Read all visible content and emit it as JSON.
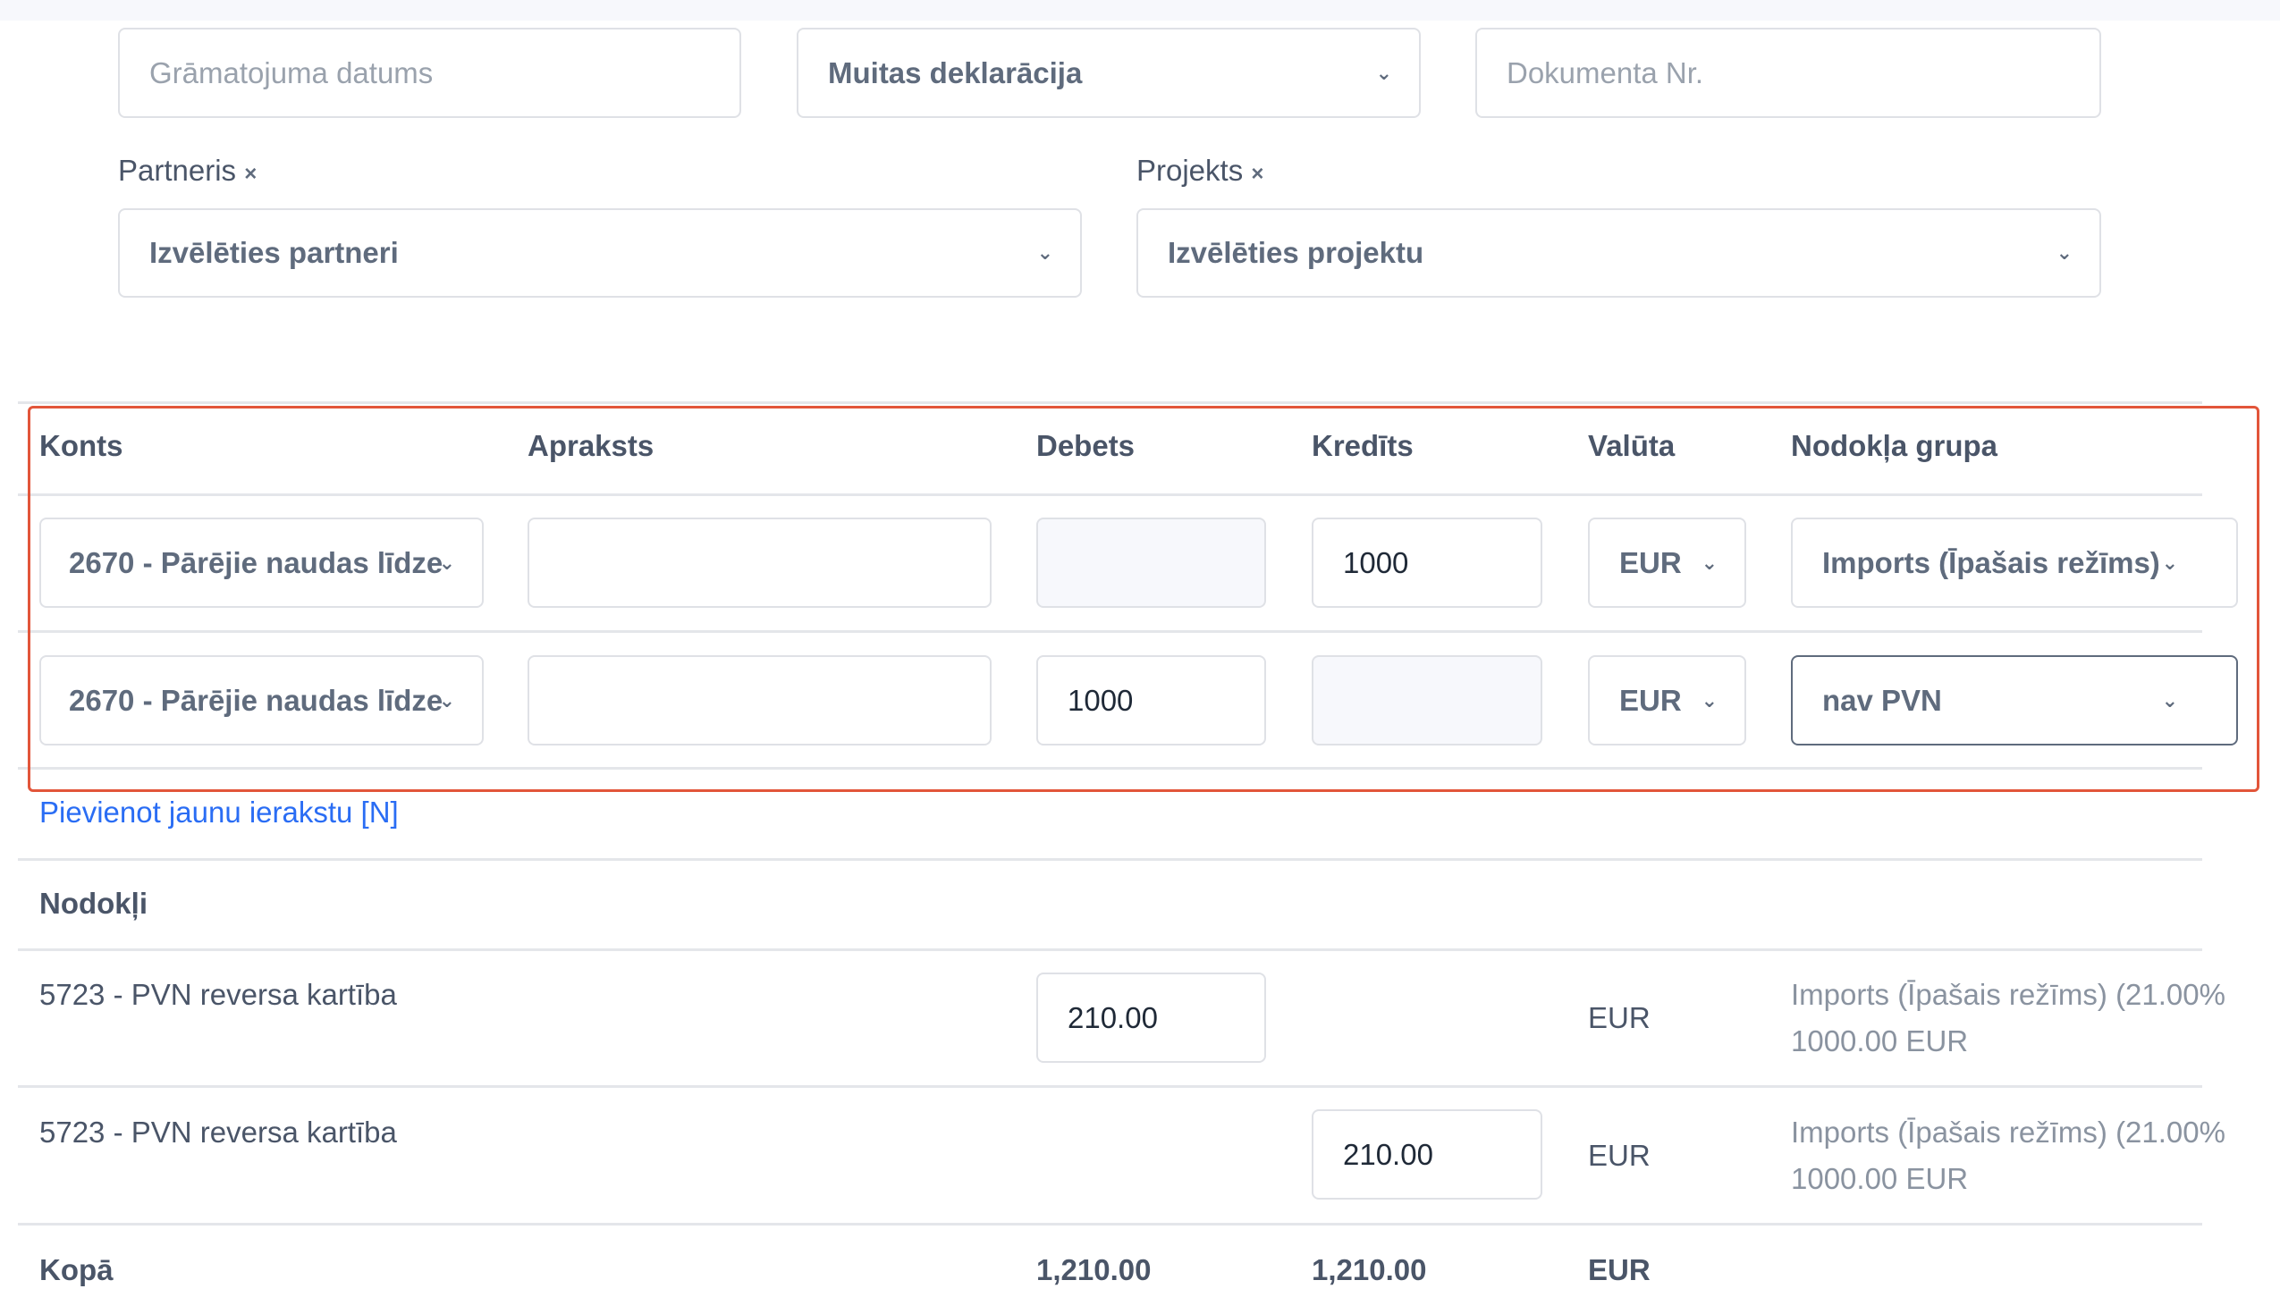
{
  "form": {
    "date_placeholder": "Grāmatojuma datums",
    "doc_type": "Muitas deklarācija",
    "doc_number_placeholder": "Dokumenta Nr.",
    "partner_label": "Partneris",
    "partner_placeholder": "Izvēlēties partneri",
    "project_label": "Projekts",
    "project_placeholder": "Izvēlēties projektu",
    "clear_symbol": "×"
  },
  "entries": {
    "headers": [
      "Konts",
      "Apraksts",
      "Debets",
      "Kredīts",
      "Valūta",
      "Nodokļa grupa"
    ],
    "rows": [
      {
        "account": "2670 - Pārējie naudas līdze",
        "description": "",
        "debit": "",
        "credit": "1000",
        "currency": "EUR",
        "tax_group": "Imports (Īpašais režīms)"
      },
      {
        "account": "2670 - Pārējie naudas līdze",
        "description": "",
        "debit": "1000",
        "credit": "",
        "currency": "EUR",
        "tax_group": "nav PVN"
      }
    ],
    "add_link": "Pievienot jaunu ierakstu [N]"
  },
  "taxes": {
    "title": "Nodokļi",
    "rows": [
      {
        "account": "5723 - PVN reversa kartība",
        "debit": "210.00",
        "credit": "",
        "currency": "EUR",
        "group": "Imports (Īpašais režīms) (21.00%",
        "base": "1000.00 EUR"
      },
      {
        "account": "5723 - PVN reversa kartība",
        "debit": "",
        "credit": "210.00",
        "currency": "EUR",
        "group": "Imports (Īpašais režīms) (21.00%",
        "base": "1000.00 EUR"
      }
    ]
  },
  "totals": {
    "label": "Kopā",
    "debit": "1,210.00",
    "credit": "1,210.00",
    "currency": "EUR"
  },
  "colors": {
    "highlight": "#e2553a",
    "link": "#2a6df4"
  },
  "icons": {
    "dropdown": "chevron-down-icon",
    "clear": "close-icon"
  }
}
